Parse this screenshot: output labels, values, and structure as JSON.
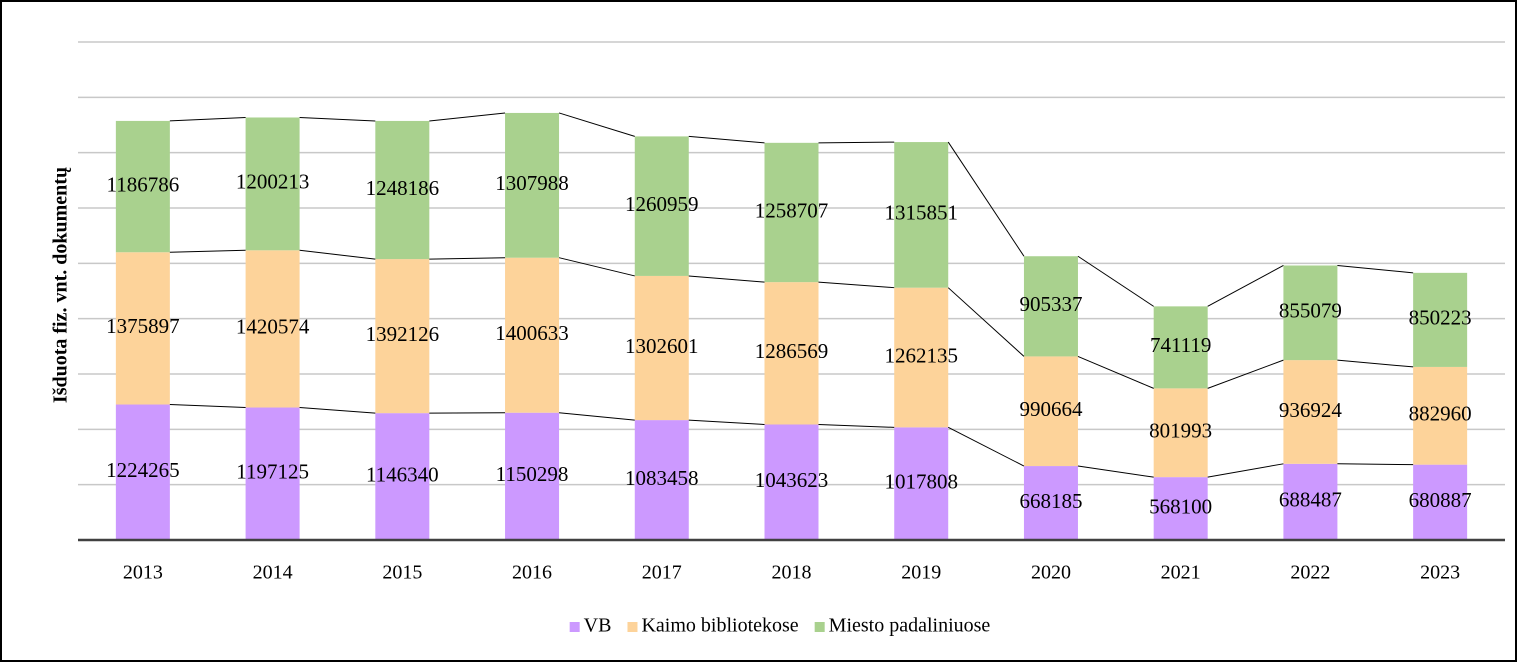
{
  "chart_data": {
    "type": "stacked_bar",
    "y_label": "Išduota fiz. vnt. dokumentų",
    "categories": [
      "2013",
      "2014",
      "2015",
      "2016",
      "2017",
      "2018",
      "2019",
      "2020",
      "2021",
      "2022",
      "2023"
    ],
    "series": [
      {
        "name": "VB",
        "color": "#cc99ff",
        "values": [
          1224265,
          1197125,
          1146340,
          1150298,
          1083458,
          1043623,
          1017808,
          668185,
          568100,
          688487,
          680887
        ]
      },
      {
        "name": "Kaimo bibliotekose",
        "color": "#fdd39a",
        "values": [
          1375897,
          1420574,
          1392126,
          1400633,
          1302601,
          1286569,
          1262135,
          990664,
          801993,
          936924,
          882960
        ]
      },
      {
        "name": "Miesto padaliniuose",
        "color": "#a9d18e",
        "values": [
          1186786,
          1200213,
          1248186,
          1307988,
          1260959,
          1258707,
          1315851,
          905337,
          741119,
          855079,
          850223
        ]
      }
    ],
    "ylim": [
      0,
      4500000
    ],
    "yticks": [
      0,
      500000,
      1000000,
      1500000,
      2000000,
      2500000,
      3000000,
      3500000,
      4000000,
      4500000
    ],
    "grid": true,
    "series_lines": true,
    "legend": "bottom"
  }
}
